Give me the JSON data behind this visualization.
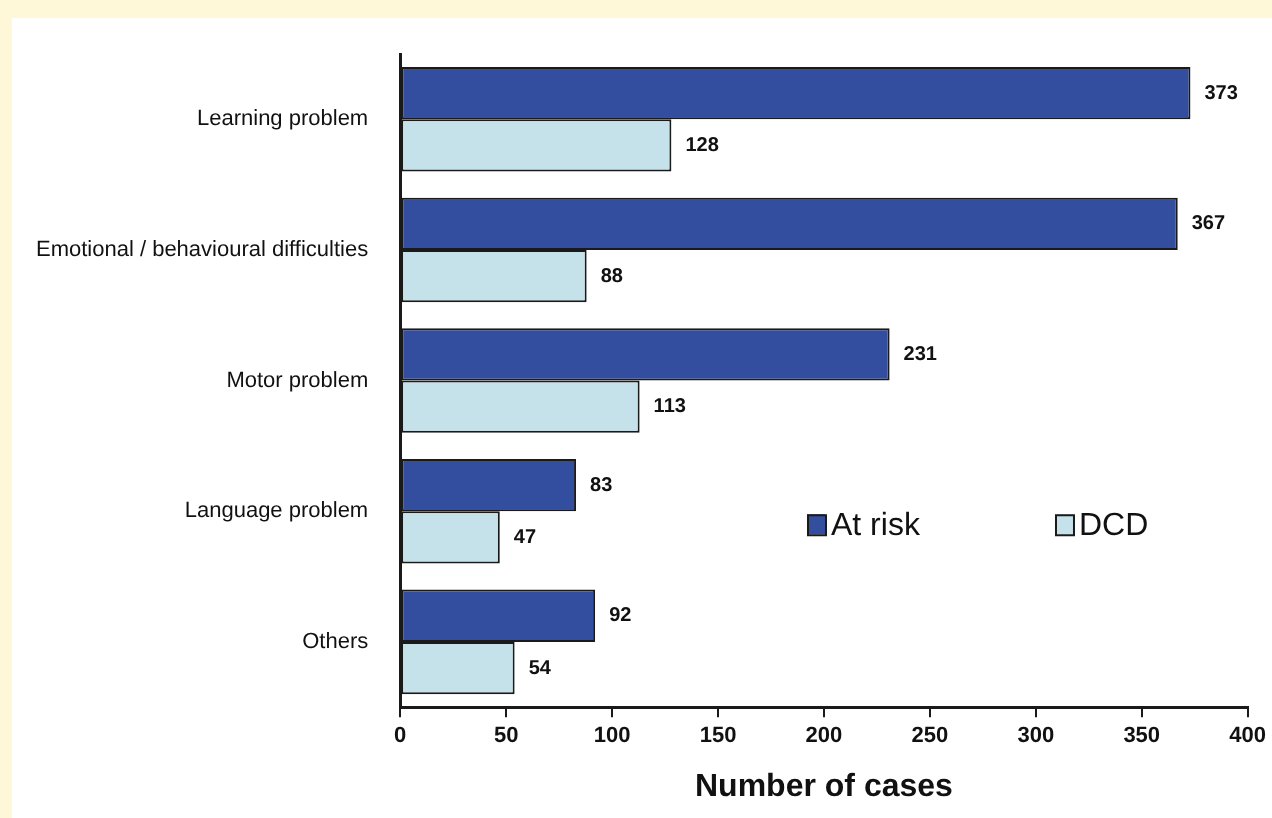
{
  "chart_data": {
    "type": "bar",
    "orientation": "horizontal",
    "xlabel": "Number of cases",
    "categories": [
      "Learning problem",
      "Emotional / behavioural difficulties",
      "Motor problem",
      "Language problem",
      "Others"
    ],
    "series": [
      {
        "name": "At risk",
        "color": "#344e9f",
        "values": [
          373,
          367,
          231,
          83,
          92
        ]
      },
      {
        "name": "DCD",
        "color": "#c5e1ea",
        "values": [
          128,
          88,
          113,
          47,
          54
        ]
      }
    ],
    "xlim": [
      0,
      400
    ],
    "xticks": [
      0,
      50,
      100,
      150,
      200,
      250,
      300,
      350,
      400
    ],
    "grid": false,
    "legend": "right",
    "data_labels": true
  }
}
